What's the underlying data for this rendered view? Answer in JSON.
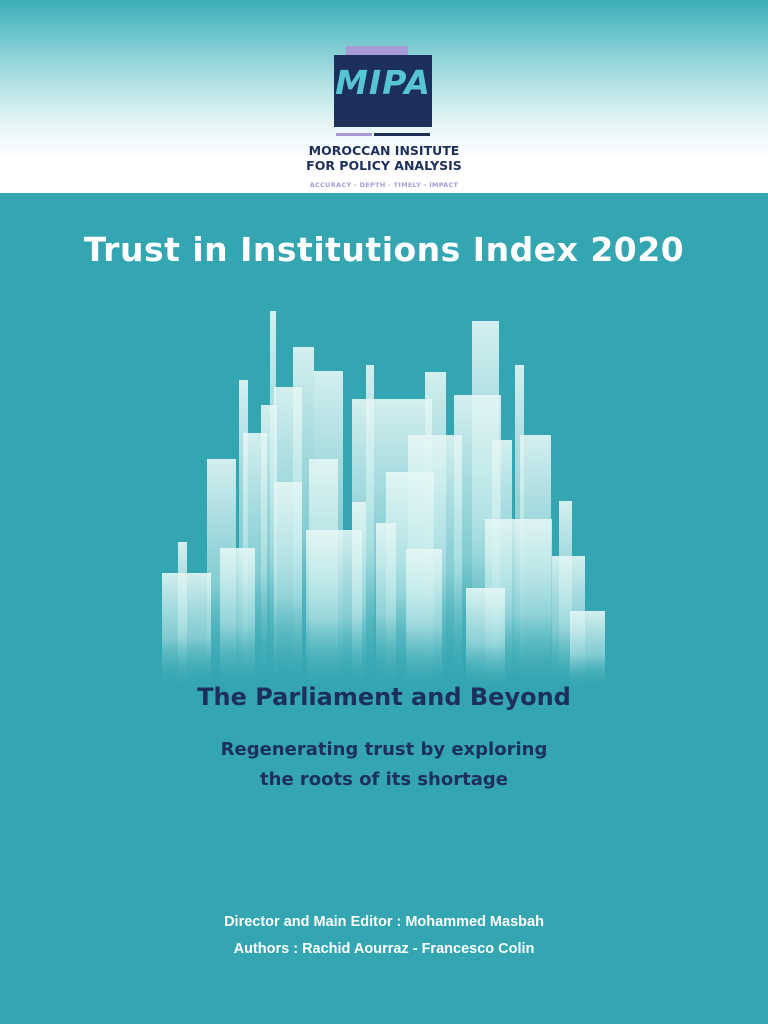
{
  "header": {
    "logo_text": "MIPA",
    "org_line1": "MOROCCAN INSITUTE",
    "org_line2": "FOR POLICY ANALYSIS",
    "tagline": "ACCURACY - DEPTH - TIMELY - IMPACT"
  },
  "cover": {
    "title": "Trust in Institutions Index 2020",
    "subtitle": "The Parliament and Beyond",
    "tagline_line1": "Regenerating trust by exploring",
    "tagline_line2": "the roots of its shortage"
  },
  "credits": {
    "editor": "Director and Main Editor :  Mohammed Masbah",
    "authors": "Authors : Rachid Aourraz - Francesco Colin"
  },
  "colors": {
    "background": "#33a6b2",
    "navy": "#1d2f5b",
    "lavender": "#a99ad6",
    "logo_text": "#58c6d2",
    "bar": "#e6f7f6"
  }
}
